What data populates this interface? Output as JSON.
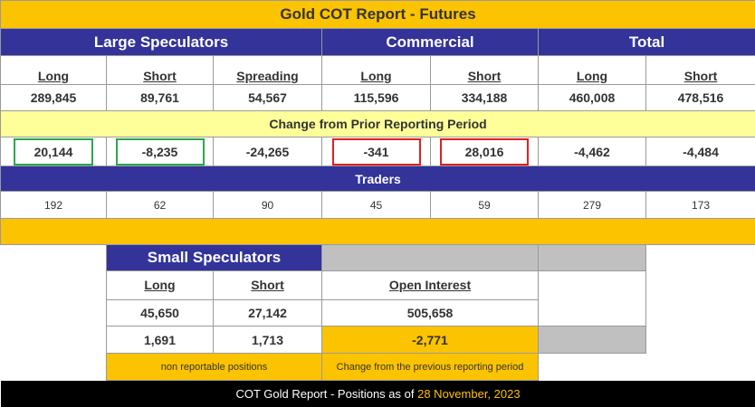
{
  "title": "Gold COT Report - Futures",
  "groups": {
    "large": "Large Speculators",
    "commercial": "Commercial",
    "total": "Total"
  },
  "columns": [
    "Long",
    "Short",
    "Spreading",
    "Long",
    "Short",
    "Long",
    "Short"
  ],
  "positions": [
    "289,845",
    "89,761",
    "54,567",
    "115,596",
    "334,188",
    "460,008",
    "478,516"
  ],
  "change_label": "Change from Prior Reporting Period",
  "changes": [
    "20,144",
    "-8,235",
    "-24,265",
    "-341",
    "28,016",
    "-4,462",
    "-4,484"
  ],
  "highlight_colors": {
    "green": "#2aa84a",
    "red": "#e02020"
  },
  "traders_label": "Traders",
  "traders": [
    "192",
    "62",
    "90",
    "45",
    "59",
    "279",
    "173"
  ],
  "small": {
    "title": "Small Speculators",
    "long_label": "Long",
    "short_label": "Short",
    "long": "45,650",
    "short": "27,142",
    "long_change": "1,691",
    "short_change": "1,713",
    "note": "non reportable positions"
  },
  "open_interest": {
    "label": "Open Interest",
    "value": "505,658",
    "change": "-2,771",
    "note": "Change from the previous reporting period"
  },
  "footer": {
    "text": "COT Gold Report - Positions as of",
    "date": "28 November, 2023"
  }
}
